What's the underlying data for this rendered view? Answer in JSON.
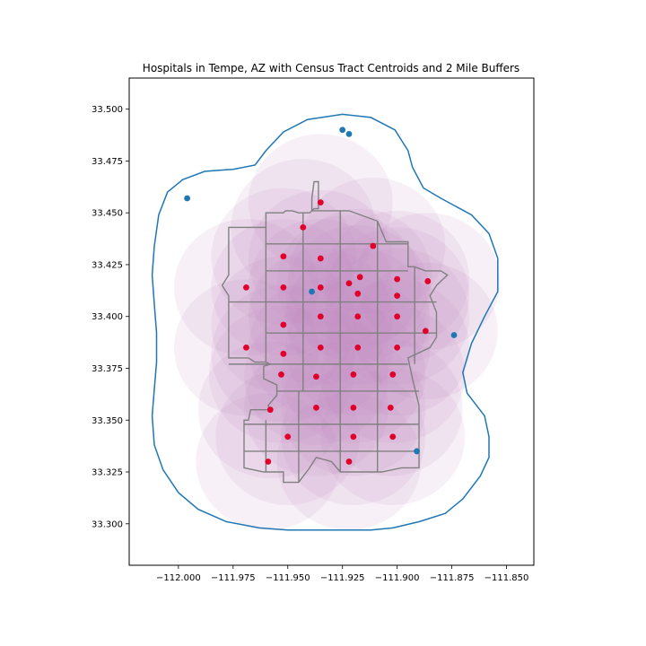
{
  "chart_data": {
    "type": "scatter",
    "title": "Hospitals in Tempe, AZ with Census Tract Centroids and 2 Mile Buffers",
    "xlabel": "",
    "ylabel": "",
    "xlim": [
      -112.0225,
      -111.8375
    ],
    "ylim": [
      33.28,
      33.515
    ],
    "xticks": [
      -112.0,
      -111.975,
      -111.95,
      -111.925,
      -111.9,
      -111.875,
      -111.85
    ],
    "xtick_labels": [
      "−112.000",
      "−111.975",
      "−111.950",
      "−111.925",
      "−111.900",
      "−111.875",
      "−111.850"
    ],
    "yticks": [
      33.3,
      33.325,
      33.35,
      33.375,
      33.4,
      33.425,
      33.45,
      33.475,
      33.5
    ],
    "ytick_labels": [
      "33.300",
      "33.325",
      "33.350",
      "33.375",
      "33.400",
      "33.425",
      "33.450",
      "33.475",
      "33.500"
    ],
    "grid": false,
    "colors": {
      "buffer_fill": "#c58ec5",
      "tract_edge": "#808080",
      "centroid": "#e0002a",
      "hospital": "#1f77b4",
      "outer_buffer": "#1f77b4"
    },
    "buffer_radius_deg": 0.033,
    "centroids": [
      {
        "x": -111.935,
        "y": 33.455
      },
      {
        "x": -111.943,
        "y": 33.443
      },
      {
        "x": -111.911,
        "y": 33.434
      },
      {
        "x": -111.952,
        "y": 33.429
      },
      {
        "x": -111.935,
        "y": 33.428
      },
      {
        "x": -111.917,
        "y": 33.419
      },
      {
        "x": -111.9,
        "y": 33.418
      },
      {
        "x": -111.922,
        "y": 33.416
      },
      {
        "x": -111.886,
        "y": 33.417
      },
      {
        "x": -111.969,
        "y": 33.414
      },
      {
        "x": -111.952,
        "y": 33.414
      },
      {
        "x": -111.935,
        "y": 33.414
      },
      {
        "x": -111.918,
        "y": 33.411
      },
      {
        "x": -111.9,
        "y": 33.41
      },
      {
        "x": -111.952,
        "y": 33.396
      },
      {
        "x": -111.935,
        "y": 33.4
      },
      {
        "x": -111.918,
        "y": 33.4
      },
      {
        "x": -111.9,
        "y": 33.4
      },
      {
        "x": -111.887,
        "y": 33.393
      },
      {
        "x": -111.969,
        "y": 33.385
      },
      {
        "x": -111.952,
        "y": 33.382
      },
      {
        "x": -111.935,
        "y": 33.385
      },
      {
        "x": -111.918,
        "y": 33.385
      },
      {
        "x": -111.9,
        "y": 33.385
      },
      {
        "x": -111.953,
        "y": 33.372
      },
      {
        "x": -111.937,
        "y": 33.371
      },
      {
        "x": -111.92,
        "y": 33.372
      },
      {
        "x": -111.902,
        "y": 33.372
      },
      {
        "x": -111.937,
        "y": 33.356
      },
      {
        "x": -111.92,
        "y": 33.356
      },
      {
        "x": -111.903,
        "y": 33.356
      },
      {
        "x": -111.958,
        "y": 33.355
      },
      {
        "x": -111.95,
        "y": 33.342
      },
      {
        "x": -111.92,
        "y": 33.342
      },
      {
        "x": -111.902,
        "y": 33.342
      },
      {
        "x": -111.959,
        "y": 33.33
      },
      {
        "x": -111.922,
        "y": 33.33
      }
    ],
    "hospitals": [
      {
        "x": -111.996,
        "y": 33.457
      },
      {
        "x": -111.925,
        "y": 33.49
      },
      {
        "x": -111.922,
        "y": 33.488
      },
      {
        "x": -111.939,
        "y": 33.412
      },
      {
        "x": -111.874,
        "y": 33.391
      },
      {
        "x": -111.891,
        "y": 33.335
      }
    ],
    "tract_boundary_outline": [
      [
        -111.939,
        33.457
      ],
      [
        -111.938,
        33.465
      ],
      [
        -111.936,
        33.465
      ],
      [
        -111.936,
        33.452
      ],
      [
        -111.938,
        33.452
      ],
      [
        -111.94,
        33.45
      ],
      [
        -111.945,
        33.45
      ],
      [
        -111.948,
        33.451
      ],
      [
        -111.951,
        33.451
      ],
      [
        -111.952,
        33.45
      ],
      [
        -111.96,
        33.45
      ],
      [
        -111.96,
        33.445
      ],
      [
        -111.96,
        33.443
      ],
      [
        -111.977,
        33.443
      ],
      [
        -111.977,
        33.42
      ],
      [
        -111.98,
        33.415
      ],
      [
        -111.977,
        33.41
      ],
      [
        -111.977,
        33.39
      ],
      [
        -111.977,
        33.38
      ],
      [
        -111.968,
        33.38
      ],
      [
        -111.965,
        33.378
      ],
      [
        -111.96,
        33.378
      ],
      [
        -111.958,
        33.377
      ],
      [
        -111.961,
        33.376
      ],
      [
        -111.961,
        33.37
      ],
      [
        -111.955,
        33.367
      ],
      [
        -111.955,
        33.362
      ],
      [
        -111.959,
        33.357
      ],
      [
        -111.958,
        33.355
      ],
      [
        -111.967,
        33.355
      ],
      [
        -111.968,
        33.35
      ],
      [
        -111.97,
        33.35
      ],
      [
        -111.97,
        33.34
      ],
      [
        -111.97,
        33.327
      ],
      [
        -111.961,
        33.325
      ],
      [
        -111.952,
        33.325
      ],
      [
        -111.952,
        33.32
      ],
      [
        -111.945,
        33.32
      ],
      [
        -111.94,
        33.327
      ],
      [
        -111.937,
        33.332
      ],
      [
        -111.93,
        33.33
      ],
      [
        -111.926,
        33.325
      ],
      [
        -111.92,
        33.325
      ],
      [
        -111.907,
        33.325
      ],
      [
        -111.898,
        33.327
      ],
      [
        -111.89,
        33.327
      ],
      [
        -111.89,
        33.34
      ],
      [
        -111.89,
        33.357
      ],
      [
        -111.893,
        33.37
      ],
      [
        -111.895,
        33.38
      ],
      [
        -111.885,
        33.385
      ],
      [
        -111.882,
        33.39
      ],
      [
        -111.882,
        33.402
      ],
      [
        -111.885,
        33.41
      ],
      [
        -111.882,
        33.415
      ],
      [
        -111.877,
        33.42
      ],
      [
        -111.88,
        33.422
      ],
      [
        -111.882,
        33.422
      ],
      [
        -111.887,
        33.422
      ],
      [
        -111.892,
        33.424
      ],
      [
        -111.895,
        33.424
      ],
      [
        -111.895,
        33.436
      ],
      [
        -111.905,
        33.436
      ],
      [
        -111.909,
        33.446
      ],
      [
        -111.922,
        33.451
      ],
      [
        -111.939,
        33.451
      ],
      [
        -111.939,
        33.457
      ]
    ],
    "tract_grid_lines": [
      [
        [
          -111.96,
          33.435
        ],
        [
          -111.895,
          33.435
        ]
      ],
      [
        [
          -111.96,
          33.422
        ],
        [
          -111.895,
          33.422
        ]
      ],
      [
        [
          -111.977,
          33.407
        ],
        [
          -111.882,
          33.407
        ]
      ],
      [
        [
          -111.96,
          33.392
        ],
        [
          -111.882,
          33.392
        ]
      ],
      [
        [
          -111.977,
          33.377
        ],
        [
          -111.895,
          33.377
        ]
      ],
      [
        [
          -111.955,
          33.364
        ],
        [
          -111.89,
          33.364
        ]
      ],
      [
        [
          -111.97,
          33.348
        ],
        [
          -111.89,
          33.348
        ]
      ],
      [
        [
          -111.97,
          33.335
        ],
        [
          -111.89,
          33.335
        ]
      ],
      [
        [
          -111.96,
          33.443
        ],
        [
          -111.96,
          33.378
        ]
      ],
      [
        [
          -111.943,
          33.45
        ],
        [
          -111.943,
          33.364
        ]
      ],
      [
        [
          -111.926,
          33.451
        ],
        [
          -111.926,
          33.325
        ]
      ],
      [
        [
          -111.909,
          33.446
        ],
        [
          -111.909,
          33.325
        ]
      ],
      [
        [
          -111.892,
          33.424
        ],
        [
          -111.892,
          33.377
        ]
      ],
      [
        [
          -111.945,
          33.364
        ],
        [
          -111.945,
          33.32
        ]
      ],
      [
        [
          -111.96,
          33.35
        ],
        [
          -111.96,
          33.325
        ]
      ]
    ],
    "outer_buffer_outline": [
      [
        -111.925,
        33.4975
      ],
      [
        -111.912,
        33.496
      ],
      [
        -111.901,
        33.49
      ],
      [
        -111.895,
        33.48
      ],
      [
        -111.893,
        33.472
      ],
      [
        -111.888,
        33.462
      ],
      [
        -111.88,
        33.457
      ],
      [
        -111.866,
        33.449
      ],
      [
        -111.858,
        33.44
      ],
      [
        -111.854,
        33.428
      ],
      [
        -111.854,
        33.412
      ],
      [
        -111.86,
        33.4
      ],
      [
        -111.866,
        33.387
      ],
      [
        -111.87,
        33.373
      ],
      [
        -111.868,
        33.363
      ],
      [
        -111.86,
        33.352
      ],
      [
        -111.858,
        33.342
      ],
      [
        -111.858,
        33.332
      ],
      [
        -111.862,
        33.323
      ],
      [
        -111.87,
        33.312
      ],
      [
        -111.878,
        33.305
      ],
      [
        -111.89,
        33.301
      ],
      [
        -111.902,
        33.298
      ],
      [
        -111.912,
        33.297
      ],
      [
        -111.921,
        33.297
      ],
      [
        -111.93,
        33.297
      ],
      [
        -111.94,
        33.297
      ],
      [
        -111.95,
        33.297
      ],
      [
        -111.963,
        33.298
      ],
      [
        -111.978,
        33.301
      ],
      [
        -111.991,
        33.307
      ],
      [
        -112.0,
        33.315
      ],
      [
        -112.007,
        33.326
      ],
      [
        -112.011,
        33.338
      ],
      [
        -112.012,
        33.352
      ],
      [
        -112.011,
        33.365
      ],
      [
        -112.01,
        33.378
      ],
      [
        -112.01,
        33.392
      ],
      [
        -112.011,
        33.406
      ],
      [
        -112.012,
        33.42
      ],
      [
        -112.011,
        33.434
      ],
      [
        -112.009,
        33.449
      ],
      [
        -112.005,
        33.46
      ],
      [
        -111.998,
        33.466
      ],
      [
        -111.988,
        33.47
      ],
      [
        -111.975,
        33.471
      ],
      [
        -111.965,
        33.473
      ],
      [
        -111.96,
        33.48
      ],
      [
        -111.952,
        33.489
      ],
      [
        -111.941,
        33.495
      ],
      [
        -111.925,
        33.4975
      ]
    ]
  }
}
